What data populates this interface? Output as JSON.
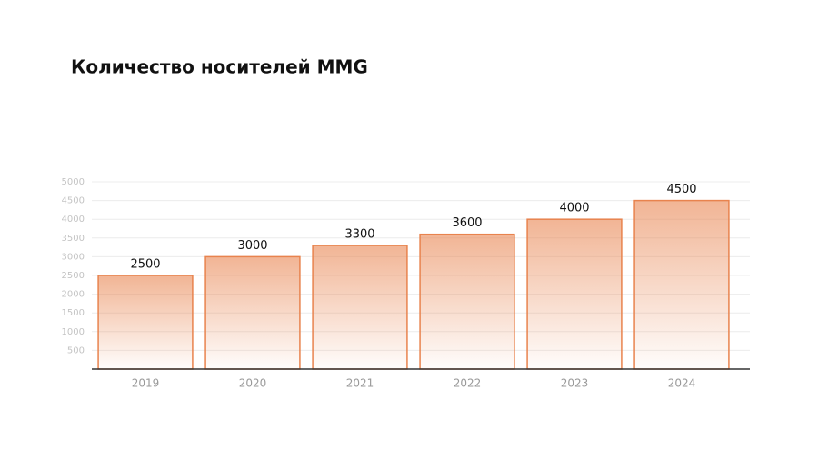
{
  "chart_data": {
    "type": "bar",
    "title": "Количество носителей MMG",
    "categories": [
      "2019",
      "2020",
      "2021",
      "2022",
      "2023",
      "2024"
    ],
    "values": [
      2500,
      3000,
      3300,
      3600,
      4000,
      4500
    ],
    "color": "#e8834e",
    "ylim": [
      0,
      5000
    ],
    "yticks": [
      500,
      1000,
      1500,
      2000,
      2500,
      3000,
      3500,
      4000,
      4500,
      5000
    ],
    "grid": true
  }
}
